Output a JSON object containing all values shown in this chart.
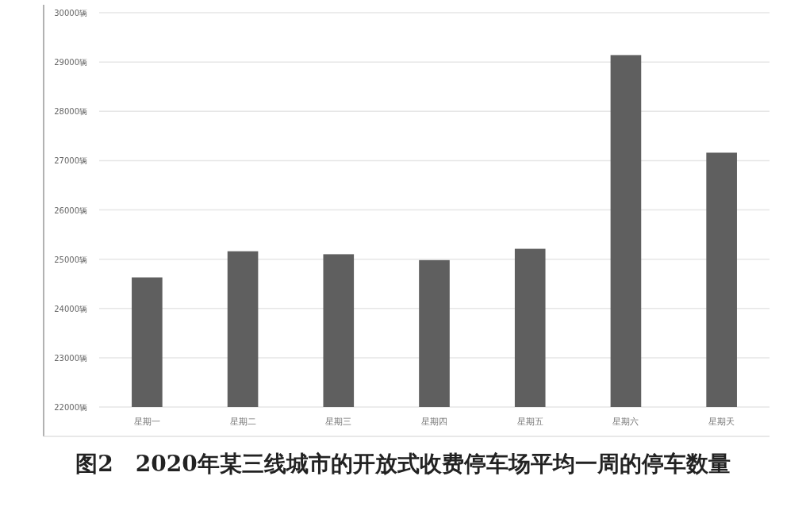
{
  "chart_data": {
    "type": "bar",
    "title": "图2　2020年某三线城市的开放式收费停车场平均一周的停车数量",
    "categories": [
      "星期一",
      "星期二",
      "星期三",
      "星期四",
      "星期五",
      "星期六",
      "星期天"
    ],
    "values": [
      24630,
      25160,
      25100,
      24980,
      25210,
      29140,
      27160
    ],
    "color": "#5f5f5f",
    "ylim": [
      22000,
      30000
    ],
    "yticks": [
      {
        "value": 22000,
        "label": "22000辆"
      },
      {
        "value": 23000,
        "label": "23000辆"
      },
      {
        "value": 24000,
        "label": "24000辆"
      },
      {
        "value": 25000,
        "label": "25000辆"
      },
      {
        "value": 26000,
        "label": "26000辆"
      },
      {
        "value": 27000,
        "label": "27000辆"
      },
      {
        "value": 28000,
        "label": "28000辆"
      },
      {
        "value": 29000,
        "label": "29000辆"
      },
      {
        "value": 30000,
        "label": "30000辆"
      }
    ],
    "grid": "y"
  }
}
